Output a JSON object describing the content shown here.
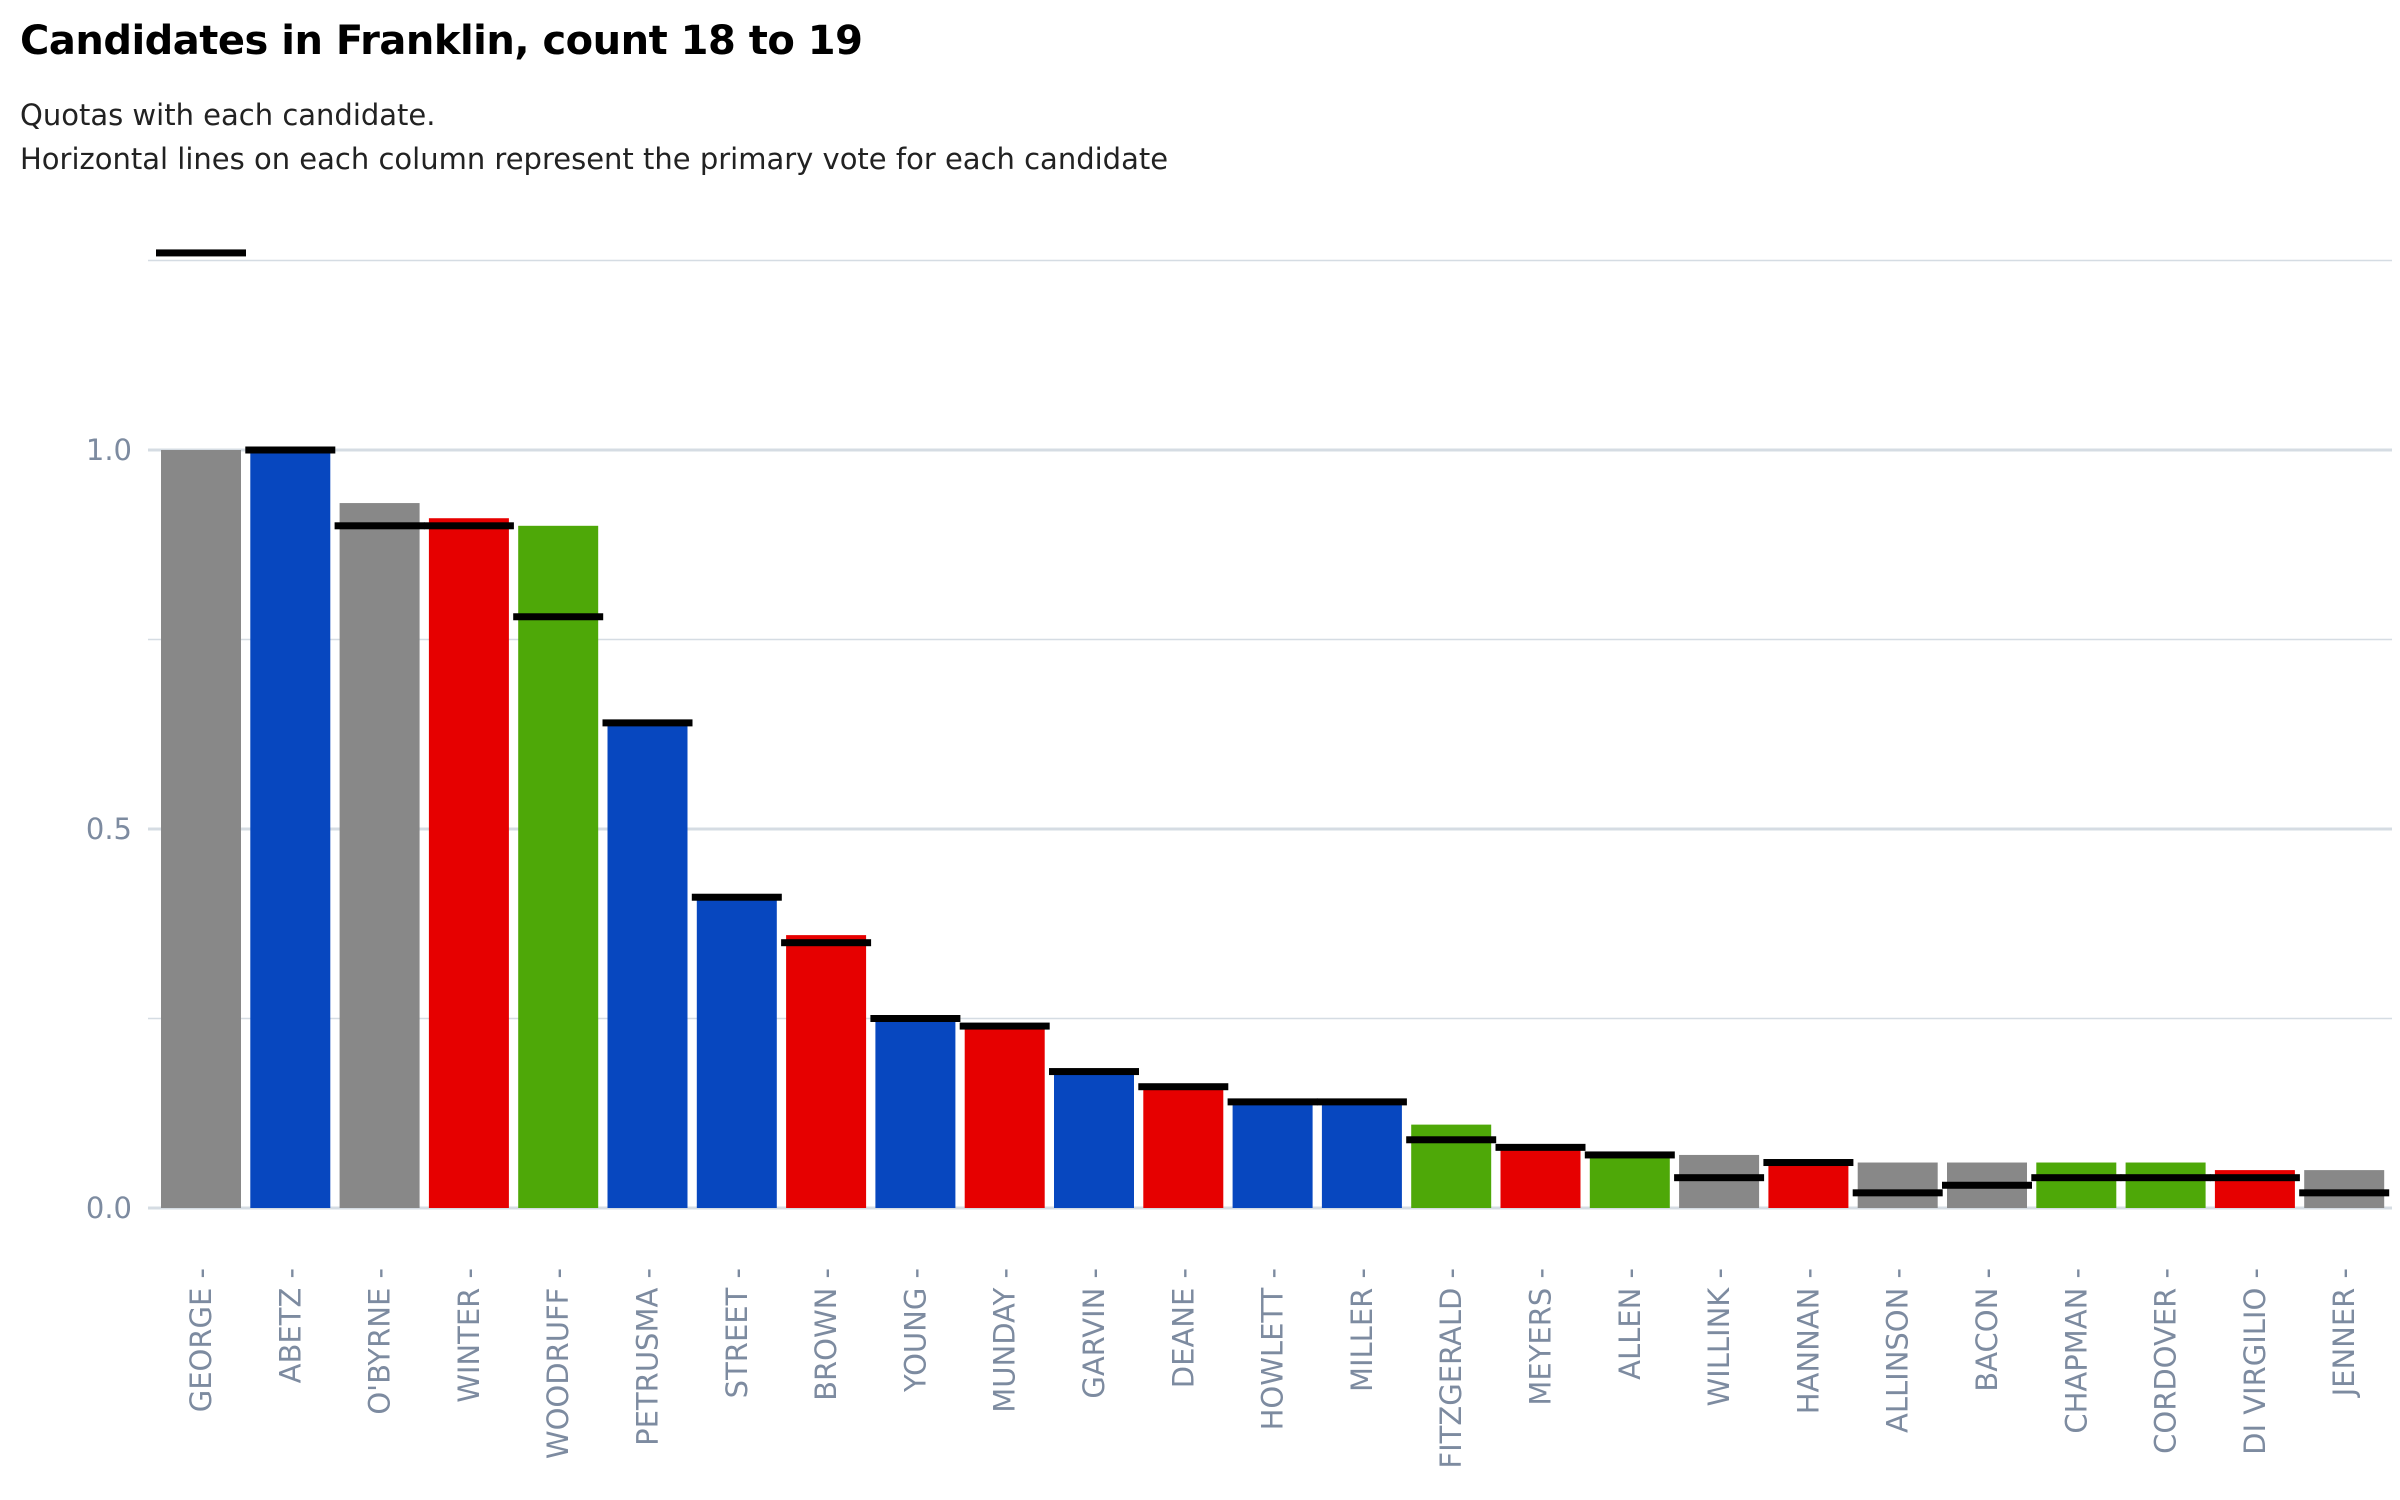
{
  "chart_data": {
    "type": "bar",
    "title": "Candidates in Franklin, count 18 to 19",
    "subtitle": [
      "Quotas with each candidate.",
      "Horizontal lines on each column represent the primary vote for each candidate"
    ],
    "xlabel": "",
    "ylabel": "",
    "ylim": [
      0,
      1.25
    ],
    "yticks": [
      0.0,
      0.5,
      1.0
    ],
    "ytick_labels": [
      "0.0",
      "0.5",
      "1.0"
    ],
    "grid": true,
    "legend": "none",
    "categories": [
      "GEORGE",
      "ABETZ",
      "O'BYRNE",
      "WINTER",
      "WOODRUFF",
      "PETRUSMA",
      "STREET",
      "BROWN",
      "YOUNG",
      "MUNDAY",
      "GARVIN",
      "DEANE",
      "HOWLETT",
      "MILLER",
      "FITZGERALD",
      "MEYERS",
      "ALLEN",
      "WILLINK",
      "HANNAN",
      "ALLINSON",
      "BACON",
      "CHAPMAN",
      "CORDOVER",
      "DI VIRGILIO",
      "JENNER"
    ],
    "series": [
      {
        "role": "quotas",
        "values": [
          1.0,
          1.0,
          0.93,
          0.91,
          0.9,
          0.64,
          0.41,
          0.36,
          0.25,
          0.24,
          0.18,
          0.16,
          0.14,
          0.14,
          0.11,
          0.08,
          0.07,
          0.07,
          0.06,
          0.06,
          0.06,
          0.06,
          0.06,
          0.05,
          0.05
        ]
      },
      {
        "role": "primary_vote",
        "values": [
          1.26,
          1.0,
          0.9,
          0.9,
          0.78,
          0.64,
          0.41,
          0.35,
          0.25,
          0.24,
          0.18,
          0.16,
          0.14,
          0.14,
          0.09,
          0.08,
          0.07,
          0.04,
          0.06,
          0.02,
          0.03,
          0.04,
          0.04,
          0.04,
          0.02
        ]
      }
    ],
    "bar_colors": [
      "#888888",
      "#0747bf",
      "#888888",
      "#e60000",
      "#4ea808",
      "#0747bf",
      "#0747bf",
      "#e60000",
      "#0747bf",
      "#e60000",
      "#0747bf",
      "#e60000",
      "#0747bf",
      "#0747bf",
      "#4ea808",
      "#e60000",
      "#4ea808",
      "#888888",
      "#e60000",
      "#888888",
      "#888888",
      "#4ea808",
      "#4ea808",
      "#e60000",
      "#888888"
    ],
    "marker_color": "#000000",
    "grid_color": "#d5dce3"
  }
}
